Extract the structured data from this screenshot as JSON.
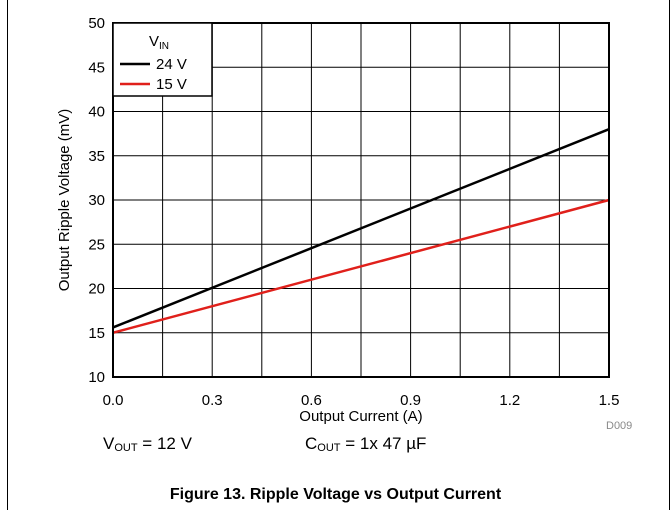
{
  "chart_data": {
    "type": "line",
    "xlabel": "Output Current (A)",
    "ylabel": "Output Ripple Voltage (mV)",
    "xlim": [
      0,
      1.5
    ],
    "ylim": [
      10,
      50
    ],
    "x_ticks": [
      0.0,
      0.3,
      0.6,
      0.9,
      1.2,
      1.5
    ],
    "x_tick_labels": [
      "0.0",
      "0.3",
      "0.6",
      "0.9",
      "1.2",
      "1.5"
    ],
    "y_ticks": [
      10,
      15,
      20,
      25,
      30,
      35,
      40,
      45,
      50
    ],
    "y_tick_labels": [
      "10",
      "15",
      "20",
      "25",
      "30",
      "35",
      "40",
      "45",
      "50"
    ],
    "x_minor_grid": [
      0.15,
      0.45,
      0.75,
      1.05,
      1.35
    ],
    "grid": true,
    "legend": {
      "title_main": "V",
      "title_sub": "IN",
      "placement": "top-left"
    },
    "series": [
      {
        "name": "24 V",
        "color": "#000000",
        "x": [
          0.0,
          1.5
        ],
        "y": [
          15.6,
          38.0
        ]
      },
      {
        "name": "15 V",
        "color": "#e0201b",
        "x": [
          0.0,
          1.5
        ],
        "y": [
          15.0,
          30.0
        ]
      }
    ]
  },
  "conditions": {
    "vout_main": "V",
    "vout_sub": "OUT",
    "vout_value": " = 12 V",
    "cout_main": "C",
    "cout_sub": "OUT",
    "cout_value": " = 1x 47 µF"
  },
  "doc_code": "D009",
  "caption": "Figure 13. Ripple Voltage vs Output Current"
}
